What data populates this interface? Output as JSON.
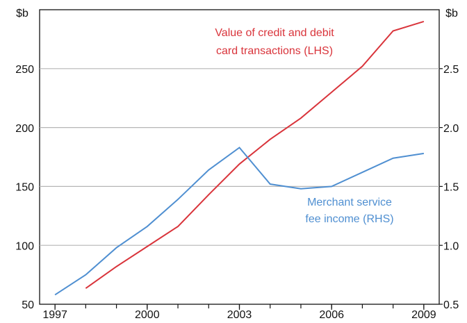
{
  "chart_data": {
    "type": "line",
    "left_unit": "$b",
    "right_unit": "$b",
    "annotations": [
      "Value of credit and debit",
      "card transactions (LHS)",
      "Merchant service",
      "fee income (RHS)"
    ],
    "x": [
      1997,
      1998,
      1999,
      2000,
      2001,
      2002,
      2003,
      2004,
      2005,
      2006,
      2007,
      2008,
      2009
    ],
    "xlim": [
      1996.5,
      2009.5
    ],
    "xticks": [
      1997,
      2000,
      2003,
      2006,
      2009
    ],
    "ylim": [
      50,
      300
    ],
    "yticks": [
      50,
      100,
      150,
      200,
      250
    ],
    "y2lim": [
      0.5,
      3.0
    ],
    "y2ticks": [
      0.5,
      {
        "value": 1,
        "label": "1.0"
      },
      1.5,
      {
        "value": 2,
        "label": "2.0"
      },
      2.5
    ],
    "grid": true,
    "series": [
      {
        "name": "Value of credit and debit card transactions (LHS)",
        "color": "#d9343b",
        "axis": "y",
        "values": [
          null,
          63.5,
          82,
          99,
          116,
          143,
          169,
          190,
          208,
          230,
          252,
          282,
          290
        ]
      },
      {
        "name": "Merchant service fee income (RHS)",
        "color": "#4f8fd1",
        "axis": "y2",
        "values": [
          0.58,
          0.75,
          0.98,
          1.16,
          1.39,
          1.64,
          1.83,
          1.52,
          1.48,
          1.5,
          1.62,
          1.74,
          1.78
        ]
      }
    ]
  }
}
